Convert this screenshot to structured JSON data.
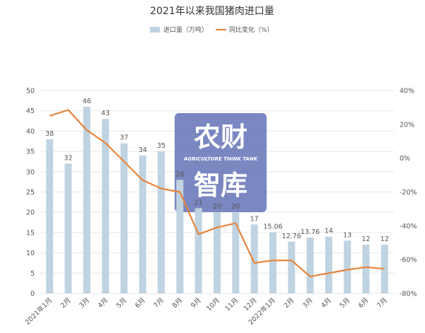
{
  "chart_data": {
    "type": "bar+line",
    "title": "2021年以来我国猪肉进口量",
    "categories": [
      "2021年1月",
      "2月",
      "3月",
      "4月",
      "5月",
      "6月",
      "7月",
      "8月",
      "9月",
      "10月",
      "11月",
      "12月",
      "2022年1月",
      "2月",
      "3月",
      "4月",
      "5月",
      "6月",
      "7月"
    ],
    "series": [
      {
        "name": "进口量（万吨）",
        "type": "bar",
        "axis": "left",
        "color": "#bfd3e1",
        "values": [
          38,
          32,
          46,
          43,
          37,
          34,
          35,
          28,
          21,
          20,
          20,
          17,
          15.06,
          12.76,
          13.76,
          14,
          13,
          12,
          12
        ],
        "labels": [
          "38",
          "32",
          "46",
          "43",
          "37",
          "34",
          "35",
          "28",
          "21",
          "20",
          "20",
          "17",
          "15.06",
          "12.76",
          "13.76",
          "14",
          "13",
          "12",
          "12"
        ]
      },
      {
        "name": "同比变化（%）",
        "type": "line",
        "axis": "right",
        "color": "#e8843c",
        "values": [
          25,
          28.5,
          16.5,
          9,
          -2,
          -13,
          -18,
          -20,
          -45,
          -41,
          -38.5,
          -62,
          -60.5,
          -60.5,
          -70,
          -68,
          -66,
          -64.5,
          -65.5
        ]
      }
    ],
    "y_left": {
      "min": 0,
      "max": 50,
      "ticks": [
        0,
        5,
        10,
        15,
        20,
        25,
        30,
        35,
        40,
        45,
        50
      ]
    },
    "y_right": {
      "min": -80,
      "max": 40,
      "ticks": [
        "-80%",
        "-60%",
        "-40%",
        "-20%",
        "0%",
        "20%",
        "40%"
      ]
    },
    "grid": true,
    "legend": "top-center"
  },
  "watermark": {
    "line1": "农财",
    "line2": "AGRICULTURE THINK TANK",
    "line3": "智库",
    "color": "#5565b0"
  }
}
